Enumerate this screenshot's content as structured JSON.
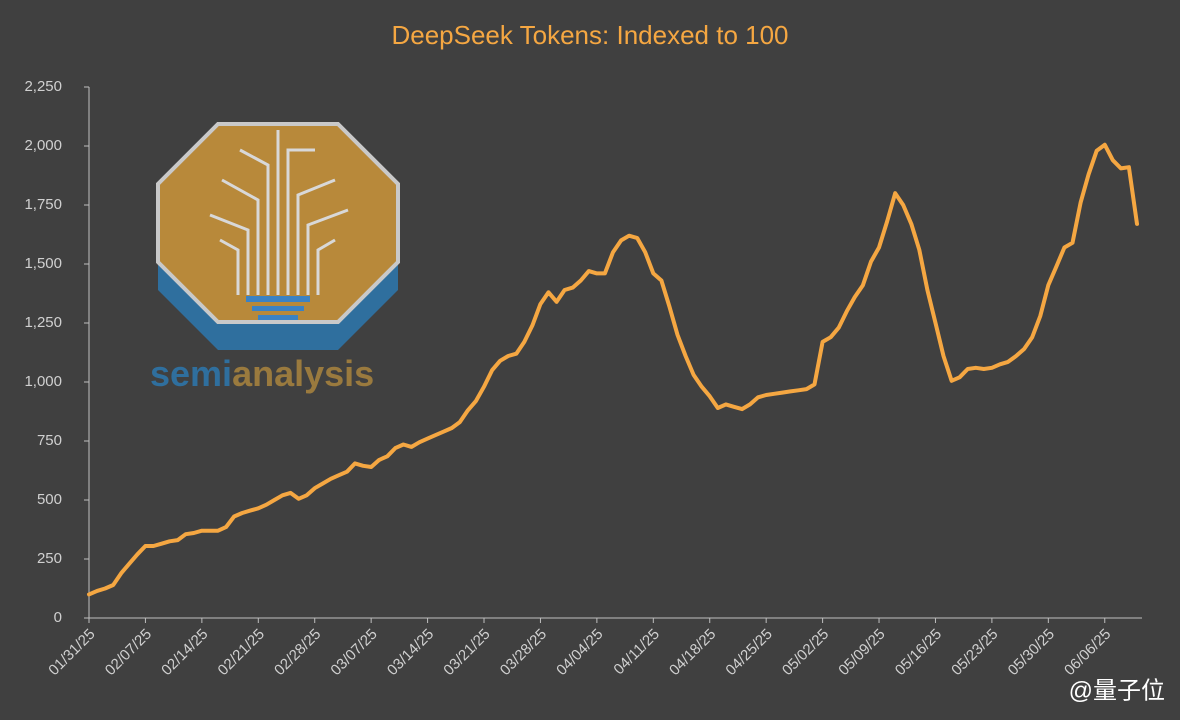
{
  "chart_data": {
    "type": "line",
    "title": "DeepSeek Tokens: Indexed to 100",
    "categories": [
      "01/31/25",
      null,
      null,
      null,
      null,
      null,
      null,
      "02/07/25",
      null,
      null,
      null,
      null,
      null,
      null,
      "02/14/25",
      null,
      null,
      null,
      null,
      null,
      null,
      "02/21/25",
      null,
      null,
      null,
      null,
      null,
      null,
      "02/28/25",
      null,
      null,
      null,
      null,
      null,
      null,
      "03/07/25",
      null,
      null,
      null,
      null,
      null,
      null,
      "03/14/25",
      null,
      null,
      null,
      null,
      null,
      null,
      "03/21/25",
      null,
      null,
      null,
      null,
      null,
      null,
      "03/28/25",
      null,
      null,
      null,
      null,
      null,
      null,
      "04/04/25",
      null,
      null,
      null,
      null,
      null,
      null,
      "04/11/25",
      null,
      null,
      null,
      null,
      null,
      null,
      "04/18/25",
      null,
      null,
      null,
      null,
      null,
      null,
      "04/25/25",
      null,
      null,
      null,
      null,
      null,
      null,
      "05/02/25",
      null,
      null,
      null,
      null,
      null,
      null,
      "05/09/25",
      null,
      null,
      null,
      null,
      null,
      null,
      "05/16/25",
      null,
      null,
      null,
      null,
      null,
      null,
      "05/23/25",
      null,
      null,
      null,
      null,
      null,
      null,
      "05/30/25",
      null,
      null,
      null,
      null,
      null,
      null,
      "06/06/25",
      null,
      null,
      null,
      null
    ],
    "values": [
      100,
      115,
      125,
      140,
      190,
      230,
      270,
      305,
      305,
      315,
      325,
      330,
      355,
      360,
      370,
      370,
      370,
      385,
      430,
      445,
      455,
      465,
      480,
      500,
      520,
      530,
      505,
      520,
      550,
      570,
      590,
      605,
      620,
      655,
      645,
      640,
      670,
      685,
      720,
      735,
      725,
      745,
      760,
      775,
      790,
      805,
      830,
      880,
      920,
      980,
      1050,
      1090,
      1110,
      1120,
      1170,
      1240,
      1330,
      1380,
      1340,
      1390,
      1400,
      1430,
      1470,
      1460,
      1460,
      1550,
      1600,
      1620,
      1610,
      1550,
      1460,
      1430,
      1320,
      1200,
      1110,
      1030,
      980,
      940,
      890,
      905,
      895,
      885,
      905,
      935,
      945,
      950,
      955,
      960,
      965,
      970,
      990,
      1170,
      1190,
      1230,
      1300,
      1360,
      1410,
      1510,
      1570,
      1680,
      1800,
      1750,
      1670,
      1560,
      1390,
      1250,
      1110,
      1005,
      1020,
      1055,
      1060,
      1055,
      1060,
      1075,
      1085,
      1110,
      1140,
      1190,
      1280,
      1410,
      1490,
      1570,
      1590,
      1760,
      1880,
      1980,
      2005,
      1940,
      1905,
      1910,
      1670
    ],
    "color": "#f5a742",
    "ylim": [
      0,
      2250
    ],
    "yticks": [
      0,
      250,
      500,
      750,
      {
        "value": 1000,
        "label": "1,000"
      },
      {
        "value": 1250,
        "label": "1,250"
      },
      {
        "value": 1500,
        "label": "1,500"
      },
      {
        "value": 1750,
        "label": "1,750"
      },
      {
        "value": 2000,
        "label": "2,000"
      },
      {
        "value": 2250,
        "label": "2,250"
      }
    ],
    "grid": false
  },
  "logo_text": [
    "semi",
    "analysis"
  ],
  "watermark": "@量子位"
}
